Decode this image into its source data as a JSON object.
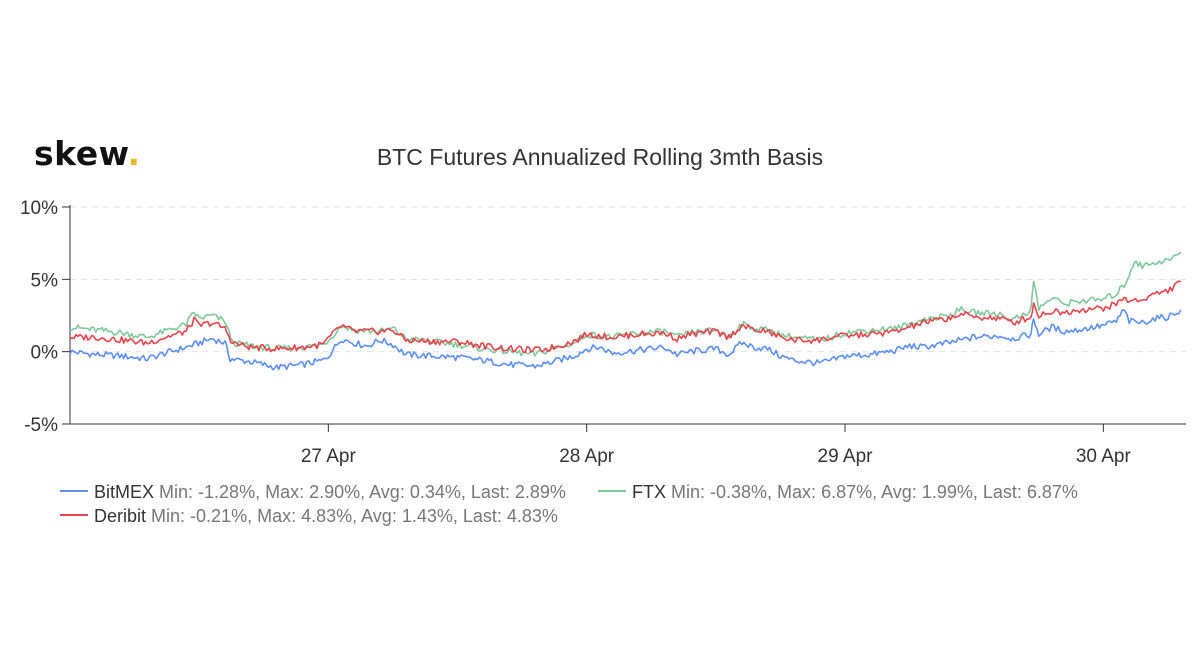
{
  "logo": {
    "text": "skew",
    "dot": "."
  },
  "chart_data": {
    "type": "line",
    "title": "BTC Futures Annualized Rolling 3mth Basis",
    "xlabel": "",
    "ylabel": "",
    "ylim": [
      -5,
      10
    ],
    "y_ticks": [
      "10%",
      "5%",
      "0%",
      "-5%"
    ],
    "y_tick_values": [
      10,
      5,
      0,
      -5
    ],
    "xlim": [
      26.0,
      30.32
    ],
    "x_ticks": [
      "27 Apr",
      "28 Apr",
      "29 Apr",
      "30 Apr"
    ],
    "x_tick_values": [
      27,
      28,
      29,
      30
    ],
    "grid": true,
    "legend_position": "bottom-left",
    "series": [
      {
        "name": "BitMEX",
        "color": "#5b8ff0",
        "stats": "Min: -1.28%, Max: 2.90%, Avg: 0.34%, Last: 2.89%",
        "points": [
          [
            26.0,
            0.0
          ],
          [
            26.1,
            -0.2
          ],
          [
            26.2,
            -0.3
          ],
          [
            26.3,
            -0.5
          ],
          [
            26.35,
            -0.2
          ],
          [
            26.45,
            0.3
          ],
          [
            26.55,
            0.9
          ],
          [
            26.6,
            0.6
          ],
          [
            26.62,
            -0.5
          ],
          [
            26.7,
            -0.7
          ],
          [
            26.8,
            -1.1
          ],
          [
            26.9,
            -0.9
          ],
          [
            26.98,
            -0.6
          ],
          [
            27.0,
            -0.3
          ],
          [
            27.05,
            0.9
          ],
          [
            27.1,
            0.6
          ],
          [
            27.15,
            0.4
          ],
          [
            27.2,
            0.8
          ],
          [
            27.25,
            0.5
          ],
          [
            27.3,
            -0.2
          ],
          [
            27.4,
            -0.3
          ],
          [
            27.5,
            -0.4
          ],
          [
            27.6,
            -0.6
          ],
          [
            27.7,
            -0.9
          ],
          [
            27.8,
            -1.0
          ],
          [
            27.85,
            -0.8
          ],
          [
            27.95,
            -0.3
          ],
          [
            28.0,
            0.2
          ],
          [
            28.05,
            0.3
          ],
          [
            28.1,
            -0.1
          ],
          [
            28.2,
            0.1
          ],
          [
            28.3,
            0.3
          ],
          [
            28.35,
            -0.2
          ],
          [
            28.4,
            0.0
          ],
          [
            28.5,
            0.2
          ],
          [
            28.55,
            -0.2
          ],
          [
            28.6,
            0.6
          ],
          [
            28.65,
            0.3
          ],
          [
            28.7,
            0.2
          ],
          [
            28.75,
            -0.3
          ],
          [
            28.8,
            -0.6
          ],
          [
            28.9,
            -0.8
          ],
          [
            28.95,
            -0.6
          ],
          [
            29.0,
            -0.3
          ],
          [
            29.1,
            -0.2
          ],
          [
            29.2,
            0.1
          ],
          [
            29.25,
            0.4
          ],
          [
            29.3,
            0.3
          ],
          [
            29.4,
            0.6
          ],
          [
            29.5,
            1.0
          ],
          [
            29.6,
            1.1
          ],
          [
            29.65,
            0.9
          ],
          [
            29.72,
            1.2
          ],
          [
            29.73,
            2.3
          ],
          [
            29.75,
            1.2
          ],
          [
            29.8,
            1.7
          ],
          [
            29.85,
            1.4
          ],
          [
            29.9,
            1.5
          ],
          [
            30.0,
            1.8
          ],
          [
            30.05,
            2.1
          ],
          [
            30.08,
            2.9
          ],
          [
            30.1,
            2.1
          ],
          [
            30.15,
            2.0
          ],
          [
            30.2,
            2.3
          ],
          [
            30.25,
            2.4
          ],
          [
            30.3,
            2.89
          ]
        ]
      },
      {
        "name": "FTX",
        "color": "#7fc89a",
        "stats": "Min: -0.38%, Max: 6.87%, Avg: 1.99%, Last: 6.87%",
        "points": [
          [
            26.0,
            1.7
          ],
          [
            26.1,
            1.5
          ],
          [
            26.2,
            1.3
          ],
          [
            26.3,
            1.0
          ],
          [
            26.35,
            1.3
          ],
          [
            26.45,
            1.9
          ],
          [
            26.48,
            2.7
          ],
          [
            26.5,
            2.3
          ],
          [
            26.55,
            2.5
          ],
          [
            26.6,
            2.1
          ],
          [
            26.63,
            0.6
          ],
          [
            26.7,
            0.4
          ],
          [
            26.8,
            0.2
          ],
          [
            26.9,
            0.3
          ],
          [
            26.98,
            0.5
          ],
          [
            27.0,
            0.8
          ],
          [
            27.05,
            1.8
          ],
          [
            27.1,
            1.5
          ],
          [
            27.2,
            1.4
          ],
          [
            27.25,
            1.6
          ],
          [
            27.3,
            0.9
          ],
          [
            27.4,
            0.7
          ],
          [
            27.5,
            0.5
          ],
          [
            27.6,
            0.2
          ],
          [
            27.7,
            0.0
          ],
          [
            27.8,
            -0.2
          ],
          [
            27.85,
            0.1
          ],
          [
            27.95,
            0.6
          ],
          [
            28.0,
            1.2
          ],
          [
            28.1,
            1.0
          ],
          [
            28.2,
            1.3
          ],
          [
            28.3,
            1.4
          ],
          [
            28.35,
            1.0
          ],
          [
            28.4,
            1.3
          ],
          [
            28.5,
            1.5
          ],
          [
            28.55,
            1.0
          ],
          [
            28.6,
            1.9
          ],
          [
            28.65,
            1.6
          ],
          [
            28.7,
            1.5
          ],
          [
            28.75,
            1.2
          ],
          [
            28.8,
            1.0
          ],
          [
            28.9,
            0.8
          ],
          [
            28.95,
            1.0
          ],
          [
            29.0,
            1.3
          ],
          [
            29.1,
            1.5
          ],
          [
            29.2,
            1.6
          ],
          [
            29.25,
            1.9
          ],
          [
            29.3,
            2.2
          ],
          [
            29.4,
            2.5
          ],
          [
            29.45,
            2.9
          ],
          [
            29.5,
            2.7
          ],
          [
            29.6,
            2.6
          ],
          [
            29.65,
            2.2
          ],
          [
            29.72,
            2.9
          ],
          [
            29.73,
            4.9
          ],
          [
            29.75,
            3.0
          ],
          [
            29.8,
            3.7
          ],
          [
            29.85,
            3.3
          ],
          [
            29.9,
            3.5
          ],
          [
            30.0,
            3.6
          ],
          [
            30.05,
            4.0
          ],
          [
            30.08,
            4.6
          ],
          [
            30.1,
            5.3
          ],
          [
            30.12,
            6.3
          ],
          [
            30.15,
            5.9
          ],
          [
            30.2,
            6.2
          ],
          [
            30.25,
            6.3
          ],
          [
            30.3,
            6.87
          ]
        ]
      },
      {
        "name": "Deribit",
        "color": "#e8434c",
        "stats": "Min: -0.21%, Max: 4.83%, Avg: 1.43%, Last: 4.83%",
        "points": [
          [
            26.0,
            1.0
          ],
          [
            26.1,
            1.0
          ],
          [
            26.2,
            0.8
          ],
          [
            26.3,
            0.6
          ],
          [
            26.35,
            0.9
          ],
          [
            26.45,
            1.4
          ],
          [
            26.48,
            2.2
          ],
          [
            26.5,
            1.8
          ],
          [
            26.55,
            2.0
          ],
          [
            26.6,
            1.6
          ],
          [
            26.63,
            0.6
          ],
          [
            26.7,
            0.3
          ],
          [
            26.8,
            0.2
          ],
          [
            26.9,
            0.3
          ],
          [
            26.98,
            0.5
          ],
          [
            27.0,
            0.9
          ],
          [
            27.05,
            1.8
          ],
          [
            27.1,
            1.4
          ],
          [
            27.2,
            1.4
          ],
          [
            27.25,
            1.5
          ],
          [
            27.3,
            0.8
          ],
          [
            27.4,
            0.7
          ],
          [
            27.5,
            0.7
          ],
          [
            27.6,
            0.4
          ],
          [
            27.7,
            0.2
          ],
          [
            27.8,
            0.1
          ],
          [
            27.85,
            0.2
          ],
          [
            27.95,
            0.7
          ],
          [
            28.0,
            1.2
          ],
          [
            28.1,
            1.0
          ],
          [
            28.2,
            1.2
          ],
          [
            28.3,
            1.3
          ],
          [
            28.35,
            0.9
          ],
          [
            28.4,
            1.2
          ],
          [
            28.5,
            1.4
          ],
          [
            28.55,
            1.0
          ],
          [
            28.6,
            1.8
          ],
          [
            28.65,
            1.5
          ],
          [
            28.7,
            1.4
          ],
          [
            28.75,
            1.0
          ],
          [
            28.8,
            0.8
          ],
          [
            28.9,
            0.8
          ],
          [
            28.95,
            1.0
          ],
          [
            29.0,
            1.1
          ],
          [
            29.1,
            1.2
          ],
          [
            29.2,
            1.4
          ],
          [
            29.25,
            1.7
          ],
          [
            29.3,
            2.0
          ],
          [
            29.4,
            2.3
          ],
          [
            29.45,
            2.6
          ],
          [
            29.5,
            2.4
          ],
          [
            29.6,
            2.3
          ],
          [
            29.65,
            2.0
          ],
          [
            29.72,
            2.4
          ],
          [
            29.73,
            3.3
          ],
          [
            29.75,
            2.5
          ],
          [
            29.8,
            2.8
          ],
          [
            29.85,
            2.7
          ],
          [
            29.9,
            2.9
          ],
          [
            30.0,
            3.0
          ],
          [
            30.05,
            3.3
          ],
          [
            30.08,
            3.7
          ],
          [
            30.1,
            3.5
          ],
          [
            30.15,
            3.6
          ],
          [
            30.2,
            4.0
          ],
          [
            30.25,
            4.2
          ],
          [
            30.3,
            4.83
          ]
        ]
      }
    ]
  }
}
